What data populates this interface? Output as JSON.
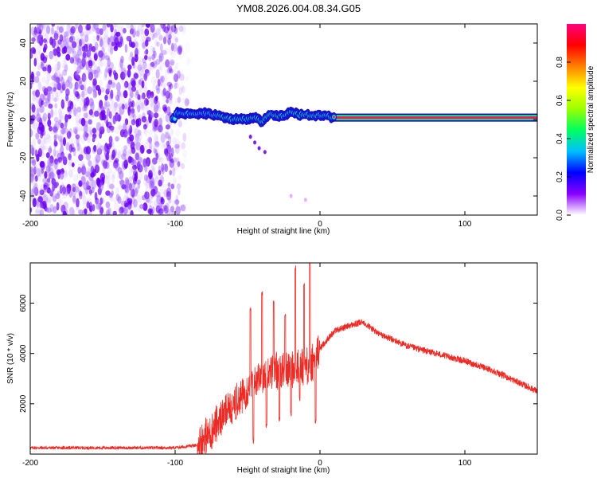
{
  "title": "YM08.2026.004.08.34.G05",
  "chart_data": [
    {
      "type": "heatmap",
      "subtype": "spectrogram",
      "xlabel": "Height of straight line (km)",
      "ylabel": "Frequency (Hz)",
      "xlim": [
        -200,
        150
      ],
      "ylim": [
        -50,
        50
      ],
      "xticks": [
        -200,
        -100,
        0,
        100
      ],
      "yticks": [
        -40,
        -20,
        0,
        20,
        40
      ],
      "colorbar": {
        "label": "Normalized spectral amplitude",
        "range": [
          0.0,
          1.0
        ],
        "ticks": [
          "0.0",
          "0.2",
          "0.4",
          "0.6",
          "0.8"
        ],
        "tick_values": [
          0.0,
          0.2,
          0.4,
          0.6,
          0.8
        ],
        "colors": [
          "#ffffff",
          "#8a00ff",
          "#0000ff",
          "#00c0ff",
          "#00ff60",
          "#9aff00",
          "#ffff00",
          "#ff8000",
          "#ff0000",
          "#ff0080"
        ]
      },
      "noise_region_x": [
        -200,
        -88
      ],
      "tone_frequency_hz": 1.0,
      "tone_track": [
        {
          "x": -100,
          "f": 3.5
        },
        {
          "x": -90,
          "f": 3.0
        },
        {
          "x": -80,
          "f": 3.2
        },
        {
          "x": -72,
          "f": 2.5
        },
        {
          "x": -65,
          "f": 1.0
        },
        {
          "x": -60,
          "f": -0.5
        },
        {
          "x": -55,
          "f": 0.5
        },
        {
          "x": -50,
          "f": 0.0
        },
        {
          "x": -45,
          "f": 1.5
        },
        {
          "x": -40,
          "f": -1.0
        },
        {
          "x": -35,
          "f": 2.5
        },
        {
          "x": -30,
          "f": 2.0
        },
        {
          "x": -25,
          "f": 1.5
        },
        {
          "x": -20,
          "f": 4.0
        },
        {
          "x": -15,
          "f": 2.5
        },
        {
          "x": -10,
          "f": 2.5
        },
        {
          "x": -5,
          "f": 2.0
        },
        {
          "x": 0,
          "f": 2.0
        },
        {
          "x": 5,
          "f": 2.0
        },
        {
          "x": 10,
          "f": 1.0
        },
        {
          "x": 150,
          "f": 1.0
        }
      ],
      "scatter_tail": [
        {
          "x": -48,
          "f": -9
        },
        {
          "x": -45,
          "f": -12
        },
        {
          "x": -42,
          "f": -15
        },
        {
          "x": -38,
          "f": -17
        },
        {
          "x": -20,
          "f": -40
        },
        {
          "x": -10,
          "f": -42
        }
      ]
    },
    {
      "type": "line",
      "color": "#ee2a24",
      "xlabel": "Height of straight line (km)",
      "ylabel": "SNR (10 * v/v)",
      "xlim": [
        -200,
        150
      ],
      "ylim": [
        0,
        7600
      ],
      "xticks": [
        -200,
        -100,
        0,
        100
      ],
      "yticks": [
        2000,
        4000,
        6000
      ],
      "envelope": [
        {
          "x": -200,
          "y": 250
        },
        {
          "x": -150,
          "y": 250
        },
        {
          "x": -100,
          "y": 250
        },
        {
          "x": -85,
          "y": 350
        },
        {
          "x": -75,
          "y": 900
        },
        {
          "x": -65,
          "y": 1700
        },
        {
          "x": -55,
          "y": 2200
        },
        {
          "x": -45,
          "y": 3000
        },
        {
          "x": -35,
          "y": 3200
        },
        {
          "x": -25,
          "y": 3400
        },
        {
          "x": -15,
          "y": 3400
        },
        {
          "x": -5,
          "y": 3600
        },
        {
          "x": 0,
          "y": 4200
        },
        {
          "x": 10,
          "y": 4900
        },
        {
          "x": 20,
          "y": 5100
        },
        {
          "x": 30,
          "y": 5250
        },
        {
          "x": 40,
          "y": 4800
        },
        {
          "x": 60,
          "y": 4300
        },
        {
          "x": 80,
          "y": 4000
        },
        {
          "x": 100,
          "y": 3700
        },
        {
          "x": 120,
          "y": 3300
        },
        {
          "x": 135,
          "y": 2900
        },
        {
          "x": 150,
          "y": 2500
        }
      ],
      "spikes": [
        {
          "x": -60,
          "y": 1900
        },
        {
          "x": -58,
          "y": 1500
        },
        {
          "x": -48,
          "y": 5900
        },
        {
          "x": -46,
          "y": 600
        },
        {
          "x": -40,
          "y": 6500
        },
        {
          "x": -37,
          "y": 1200
        },
        {
          "x": -32,
          "y": 6100
        },
        {
          "x": -28,
          "y": 1500
        },
        {
          "x": -24,
          "y": 5600
        },
        {
          "x": -20,
          "y": 1700
        },
        {
          "x": -17,
          "y": 7500
        },
        {
          "x": -14,
          "y": 2300
        },
        {
          "x": -11,
          "y": 6800
        },
        {
          "x": -7,
          "y": 7700
        },
        {
          "x": -3,
          "y": 1400
        }
      ]
    }
  ]
}
